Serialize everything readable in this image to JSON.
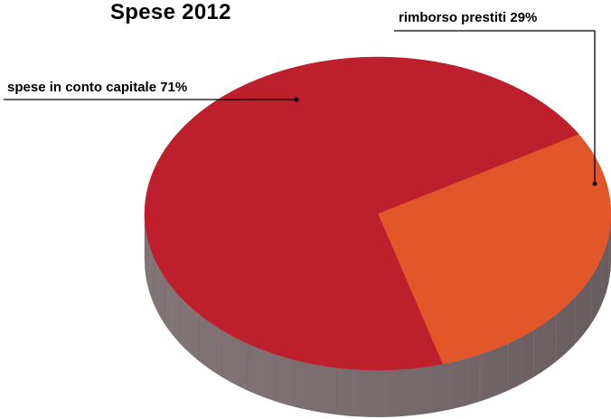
{
  "chart_data": {
    "type": "pie",
    "title": "Spese 2012",
    "slices": [
      {
        "label": "spese in conto capitale 71%",
        "category": "spese in conto capitale",
        "value": 71,
        "color": "#bd1f2d"
      },
      {
        "label": "rimborso prestiti 29%",
        "category": "rimborso prestiti",
        "value": 29,
        "color": "#e2572a"
      }
    ],
    "legend": "none",
    "style": "3d",
    "side_color": "#7a6e70"
  }
}
